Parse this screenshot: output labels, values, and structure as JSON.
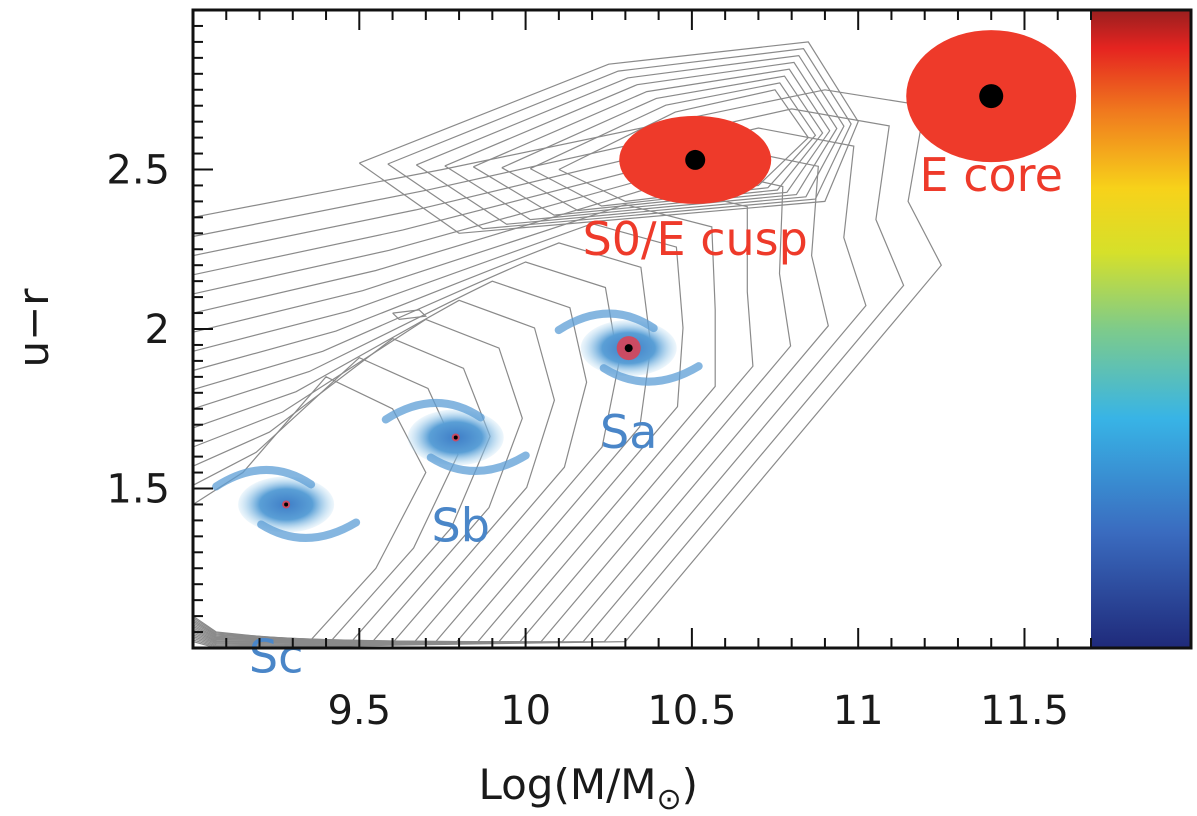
{
  "chart_data": {
    "type": "scatter",
    "xlabel": "Log(M/M",
    "xlabel_symbol": "⊙",
    "xlabel_close": ")",
    "ylabel": "u−r",
    "xlim": [
      9.0,
      11.7
    ],
    "ylim": [
      1.0,
      3.0
    ],
    "xticks": [
      "9.5",
      "10",
      "10.5",
      "11",
      "11.5"
    ],
    "xtick_values": [
      9.5,
      10.0,
      10.5,
      11.0,
      11.5
    ],
    "yticks": [
      "1.5",
      "2",
      "2.5"
    ],
    "ytick_values": [
      1.5,
      2.0,
      2.5
    ],
    "grid": false,
    "colorbar": "right",
    "background": "grey density contours",
    "points": [
      {
        "label": "Sc",
        "x": 9.28,
        "y": 1.45,
        "kind": "spiral",
        "color": "#4a86c8"
      },
      {
        "label": "Sb",
        "x": 9.79,
        "y": 1.66,
        "kind": "spiral",
        "color": "#4a86c8"
      },
      {
        "label": "Sa",
        "x": 10.31,
        "y": 1.94,
        "kind": "spiral",
        "color": "#4a86c8"
      },
      {
        "label": "S0/E cusp",
        "x": 10.51,
        "y": 2.53,
        "kind": "elliptical",
        "color": "#ee3a2a"
      },
      {
        "label": "E core",
        "x": 11.4,
        "y": 2.73,
        "kind": "elliptical",
        "color": "#ee3a2a"
      }
    ]
  }
}
